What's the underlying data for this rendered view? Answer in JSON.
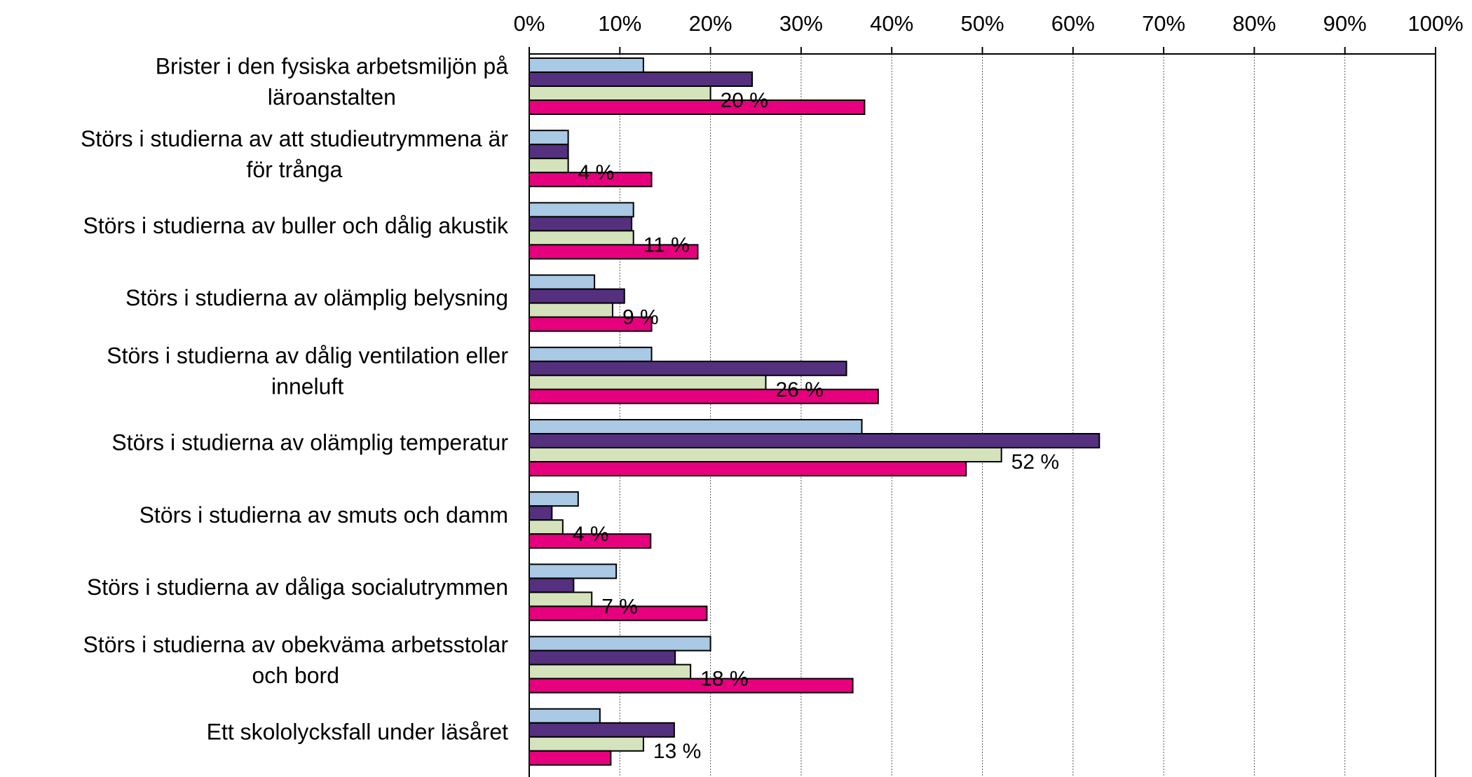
{
  "chart_data": {
    "type": "bar",
    "orientation": "horizontal",
    "title": "",
    "xlabel": "",
    "ylabel": "",
    "xlim": [
      0,
      100
    ],
    "ticks": [
      "0%",
      "10%",
      "20%",
      "30%",
      "40%",
      "50%",
      "60%",
      "70%",
      "80%",
      "90%",
      "100%"
    ],
    "grid": true,
    "legend": "none",
    "categories": [
      [
        "Brister i den fysiska arbetsmiljön på",
        "läroanstalten"
      ],
      [
        "Störs i studierna av att studieutrymmena är",
        "för trånga"
      ],
      [
        "Störs i studierna av buller och dålig akustik"
      ],
      [
        "Störs i studierna av olämplig belysning"
      ],
      [
        "Störs i studierna av dålig ventilation eller",
        "inneluft"
      ],
      [
        "Störs i studierna av olämplig temperatur"
      ],
      [
        "Störs i studierna av smuts och damm"
      ],
      [
        "Störs i studierna av dåliga socialutrymmen"
      ],
      [
        "Störs i studierna av obekväma arbetsstolar",
        "och bord"
      ],
      [
        "Ett skololycksfall under läsåret"
      ]
    ],
    "series": [
      {
        "color": "#a9c9e4",
        "values": [
          12.6,
          4.3,
          11.5,
          7.2,
          13.5,
          36.7,
          5.4,
          9.6,
          20,
          7.8
        ]
      },
      {
        "color": "#55307e",
        "values": [
          24.6,
          4.3,
          11.3,
          10.5,
          35,
          62.9,
          2.5,
          4.9,
          16.1,
          16
        ]
      },
      {
        "color": "#d4e3bc",
        "values": [
          20,
          4.3,
          11.5,
          9.2,
          26.1,
          52.1,
          3.7,
          6.9,
          17.8,
          12.6
        ]
      },
      {
        "color": "#e6007e",
        "values": [
          37,
          13.5,
          18.6,
          13.5,
          38.5,
          48.2,
          13.4,
          19.6,
          35.7,
          9
        ]
      }
    ],
    "data_labels": [
      "20 %",
      "4 %",
      "11 %",
      "9 %",
      "26 %",
      "52 %",
      "4 %",
      "7 %",
      "18 %",
      "13 %"
    ],
    "data_label_series": 2
  }
}
